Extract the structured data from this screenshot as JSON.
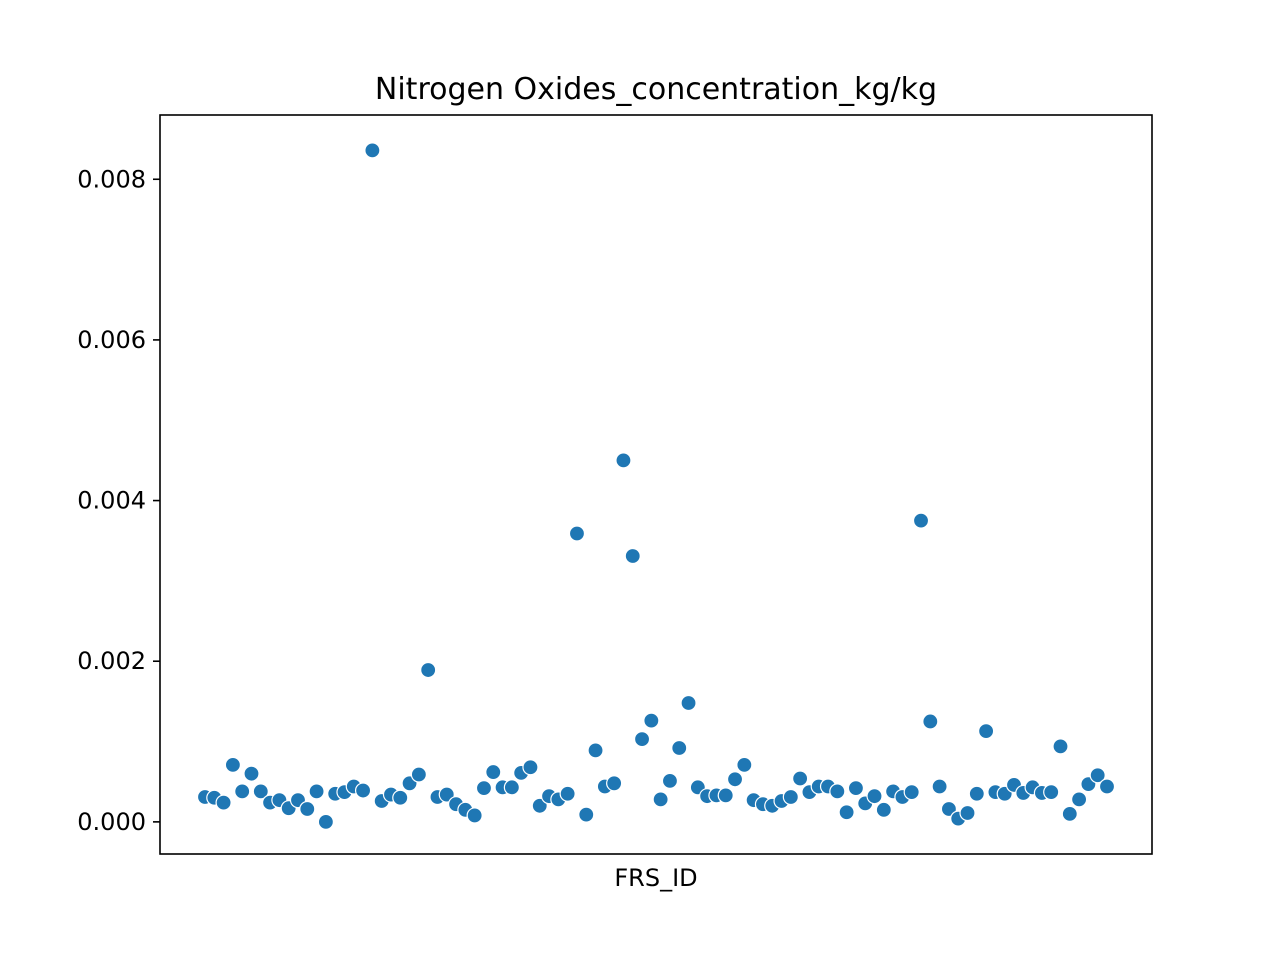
{
  "chart_data": {
    "type": "scatter",
    "title": "Nitrogen Oxides_concentration_kg/kg",
    "xlabel": "FRS_ID",
    "ylabel": "",
    "ylim": [
      -0.0004,
      0.0088
    ],
    "yticks": [
      0.0,
      0.002,
      0.004,
      0.006,
      0.008
    ],
    "ytick_labels": [
      "0.000",
      "0.002",
      "0.004",
      "0.006",
      "0.008"
    ],
    "xtick_labels_shown": false,
    "grid": false,
    "legend": "none",
    "marker_color": "#1f77b4",
    "marker_edge_color": "#ffffff",
    "values": [
      0.00031,
      0.0003,
      0.00024,
      0.00071,
      0.00038,
      0.0006,
      0.00038,
      0.00024,
      0.00027,
      0.00017,
      0.00027,
      0.00016,
      0.00038,
      0.0,
      0.00035,
      0.00037,
      0.00044,
      0.00039,
      0.00836,
      0.00026,
      0.00034,
      0.0003,
      0.00048,
      0.00059,
      0.00189,
      0.00031,
      0.00034,
      0.00022,
      0.00015,
      8e-05,
      0.00042,
      0.00062,
      0.00043,
      0.00043,
      0.00061,
      0.00068,
      0.0002,
      0.00032,
      0.00028,
      0.00035,
      0.00359,
      9e-05,
      0.00089,
      0.00044,
      0.00048,
      0.0045,
      0.00331,
      0.00103,
      0.00126,
      0.00028,
      0.00051,
      0.00092,
      0.00148,
      0.00043,
      0.00032,
      0.00033,
      0.00033,
      0.00053,
      0.00071,
      0.00027,
      0.00022,
      0.0002,
      0.00026,
      0.00031,
      0.00054,
      0.00037,
      0.00044,
      0.00044,
      0.00038,
      0.00012,
      0.00042,
      0.00023,
      0.00032,
      0.00015,
      0.00038,
      0.00031,
      0.00037,
      0.00375,
      0.00125,
      0.00044,
      0.00016,
      4e-05,
      0.00011,
      0.00035,
      0.00113,
      0.00037,
      0.00035,
      0.00046,
      0.00036,
      0.00043,
      0.00036,
      0.00037,
      0.00094,
      0.0001,
      0.00028,
      0.00047,
      0.00058,
      0.00044
    ]
  }
}
